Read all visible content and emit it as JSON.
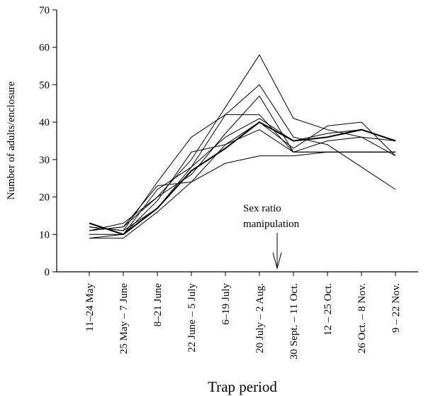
{
  "chart_data": {
    "type": "line",
    "xlabel": "Trap period",
    "ylabel": "Number of adults/enclosure",
    "ylim": [
      0,
      70
    ],
    "yticks": [
      0,
      10,
      20,
      30,
      40,
      50,
      60,
      70
    ],
    "grid": false,
    "legend": "none",
    "categories": [
      "11–24 May",
      "25 May – 7 June",
      "8–21 June",
      "22 June – 5 July",
      "6–19 July",
      "20 July – 2 Aug.",
      "30 Sept. – 11 Oct.",
      "12 – 25 Oct.",
      "26 Oct. – 8 Nov.",
      "9 – 22 Nov."
    ],
    "annotation": {
      "lines": [
        "Sex ratio",
        "manipulation"
      ],
      "arrow_between_categories": [
        5,
        6
      ]
    },
    "series": [
      {
        "values": [
          12,
          11,
          24,
          36,
          42,
          42,
          32,
          35,
          36,
          31
        ],
        "color": "#000000",
        "width": 1
      },
      {
        "values": [
          11,
          12,
          23,
          24,
          34,
          40,
          33,
          39,
          40,
          31
        ],
        "color": "#000000",
        "width": 1
      },
      {
        "values": [
          9,
          9,
          16,
          24,
          29,
          31,
          31,
          32,
          32,
          32
        ],
        "color": "#000000",
        "width": 1
      },
      {
        "values": [
          11,
          13,
          20,
          30,
          44,
          58,
          41,
          38,
          36,
          35
        ],
        "color": "#000000",
        "width": 1
      },
      {
        "values": [
          12,
          11,
          17,
          28,
          42,
          50,
          36,
          34,
          28,
          22
        ],
        "color": "#000000",
        "width": 1
      },
      {
        "values": [
          9,
          10,
          19,
          32,
          34,
          38,
          32,
          32,
          32,
          32
        ],
        "color": "#000000",
        "width": 1
      },
      {
        "values": [
          11,
          12,
          20,
          26,
          37,
          47,
          32,
          32,
          32,
          32
        ],
        "color": "#000000",
        "width": 1
      },
      {
        "values": [
          10,
          10,
          22,
          28,
          36,
          41,
          35,
          37,
          38,
          35
        ],
        "color": "#000000",
        "width": 1
      },
      {
        "values": [
          13,
          10,
          17,
          27,
          33,
          40,
          35,
          36,
          38,
          35
        ],
        "color": "#000000",
        "width": 2
      }
    ]
  }
}
